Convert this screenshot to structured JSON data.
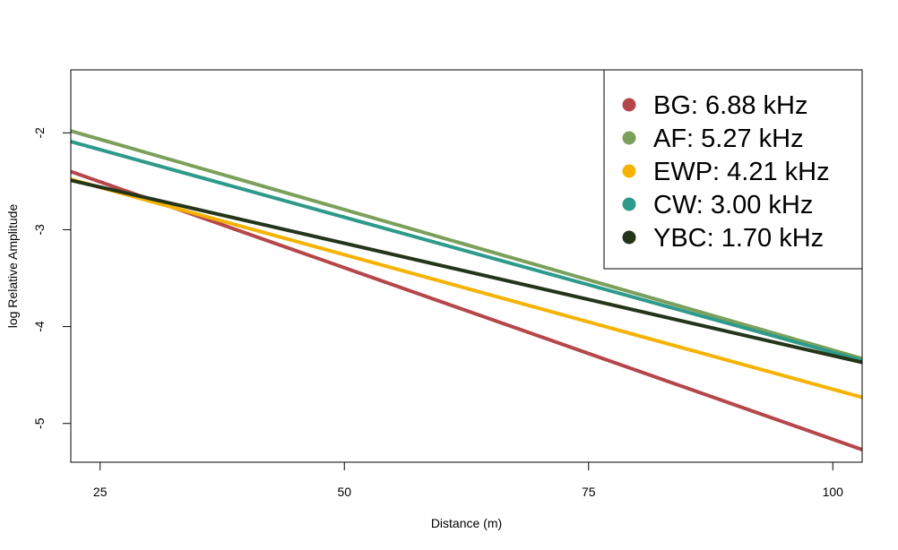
{
  "chart_data": {
    "type": "line",
    "title": "",
    "xlabel": "Distance (m)",
    "ylabel": "log Relative Amplitude",
    "xlim": [
      22,
      103
    ],
    "ylim": [
      -5.4,
      -1.35
    ],
    "x_ticks": [
      25,
      50,
      75,
      100
    ],
    "y_ticks": [
      -5,
      -4,
      -3,
      -2
    ],
    "x_tick_labels": [
      "25",
      "50",
      "75",
      "100"
    ],
    "y_tick_labels": [
      "-5",
      "-4",
      "-3",
      "-2"
    ],
    "grid": false,
    "legend_position": "top-right",
    "series": [
      {
        "name": "BG: 6.88 kHz",
        "color": "#B5474B",
        "x": [
          22,
          103
        ],
        "y": [
          -2.4,
          -5.27
        ]
      },
      {
        "name": "AF: 5.27 kHz",
        "color": "#7BA05B",
        "x": [
          22,
          103
        ],
        "y": [
          -1.98,
          -4.33
        ]
      },
      {
        "name": "EWP: 4.21 kHz",
        "color": "#F5B300",
        "x": [
          22,
          103
        ],
        "y": [
          -2.48,
          -4.73
        ]
      },
      {
        "name": "CW: 3.00 kHz",
        "color": "#2E9A8C",
        "x": [
          22,
          103
        ],
        "y": [
          -2.09,
          -4.35
        ]
      },
      {
        "name": "YBC: 1.70 kHz",
        "color": "#24351A",
        "x": [
          22,
          103
        ],
        "y": [
          -2.49,
          -4.37
        ]
      }
    ]
  }
}
